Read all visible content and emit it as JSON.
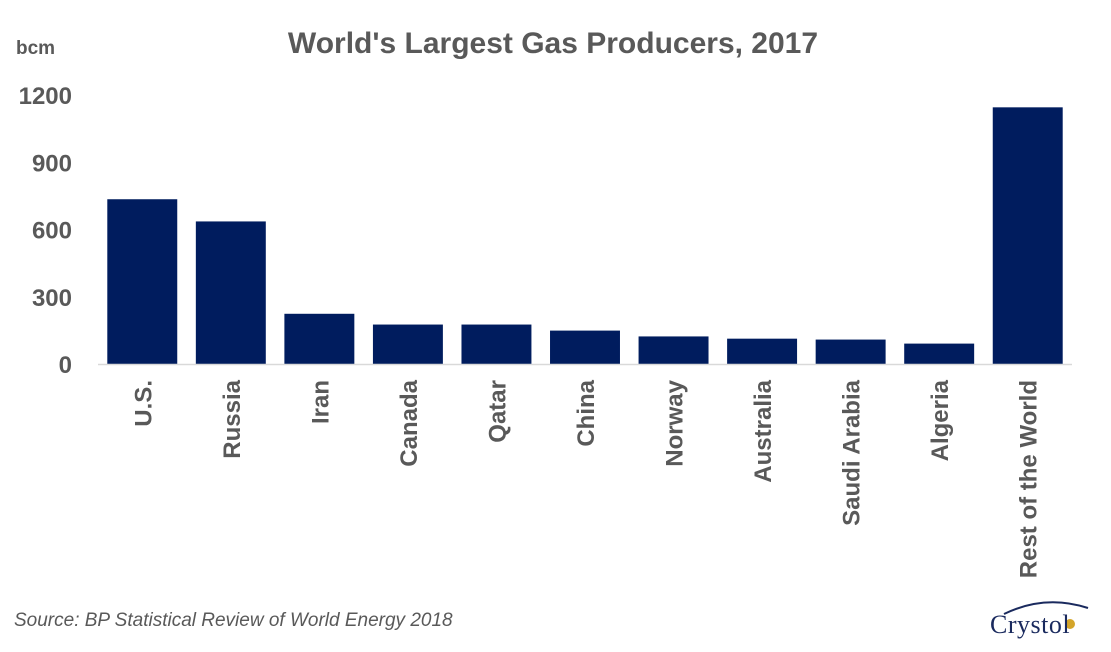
{
  "chart_data": {
    "type": "bar",
    "title": "World's Largest Gas Producers, 2017",
    "ylabel": "bcm",
    "xlabel": "",
    "ylim": [
      0,
      1200
    ],
    "yticks": [
      "0",
      "300",
      "600",
      "900",
      "1200"
    ],
    "categories": [
      "U.S.",
      "Russia",
      "Iran",
      "Canada",
      "Qatar",
      "China",
      "Norway",
      "Australia",
      "Saudi Arabia",
      "Algeria",
      "Rest of the World"
    ],
    "values": [
      735,
      636,
      224,
      176,
      176,
      149,
      123,
      113,
      109,
      91,
      1145
    ],
    "bar_color": "#001c5e",
    "grid": false,
    "legend": "none"
  },
  "source": "Source: BP Statistical Review of World Energy 2018",
  "logo": {
    "text": "Crystol",
    "color": "#1a2a5e"
  }
}
